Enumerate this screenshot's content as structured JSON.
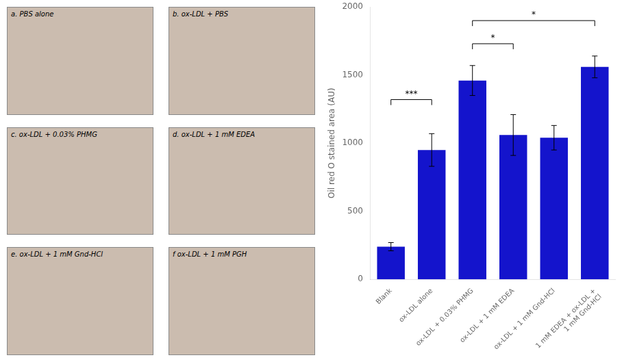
{
  "chart_data": {
    "type": "bar",
    "categories": [
      "Blank",
      "ox-LDL alone",
      "ox-LDL + 0.03% PHMG",
      "ox-LDL + 1 mM EDEA",
      "ox-LDL + 1 mM Gnd-HCl",
      "1 mM EDEA + ox-LDL +\n1 mM Gnd-HCl"
    ],
    "values": [
      240,
      950,
      1460,
      1060,
      1040,
      1560
    ],
    "errors": [
      30,
      120,
      110,
      150,
      90,
      80
    ],
    "color": "#1414cc",
    "ylabel": "Oil red O stained area (AU)",
    "ylim": [
      0,
      2000
    ],
    "yticks": [
      0,
      500,
      1000,
      1500,
      2000
    ],
    "grid": false,
    "annotations": [
      {
        "text": "***",
        "x1": "Blank",
        "x2": "ox-LDL alone",
        "y": 1320
      },
      {
        "text": "*",
        "x1": "ox-LDL + 0.03% PHMG",
        "x2": "ox-LDL + 1 mM EDEA",
        "y": 1730
      },
      {
        "text": "*",
        "x1": "ox-LDL + 0.03% PHMG",
        "x2": "1 mM EDEA + ox-LDL +\n1 mM Gnd-HCl",
        "y": 1900
      }
    ],
    "panel_labels": [
      "a. PBS alone",
      "b. ox-LDL + PBS",
      "c. ox-LDL + 0.03% PHMG",
      "d. ox-LDL + 1 mM EDEA",
      "e. ox-LDL + 1 mM Gnd-HCl",
      "f ox-LDL + 1 mM PGH"
    ]
  }
}
